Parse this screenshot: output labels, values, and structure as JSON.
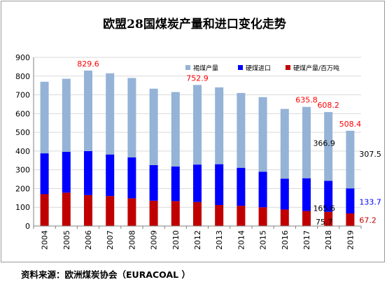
{
  "source_note": "资料来源：欧洲煤炭协会（EURACOAL ）",
  "chart_data": {
    "type": "bar",
    "stacked": true,
    "title": "欧盟28国煤炭产量和进口变化走势",
    "xlabel": "",
    "ylabel": "",
    "ylim": [
      0,
      900
    ],
    "yticks": [
      0,
      100,
      200,
      300,
      400,
      500,
      600,
      700,
      800,
      900
    ],
    "grid": true,
    "legend_position": "top",
    "categories": [
      "2004",
      "2005",
      "2006",
      "2007",
      "2008",
      "2009",
      "2010",
      "2012",
      "2013",
      "2014",
      "2015",
      "2016",
      "2017",
      "2018",
      "2019"
    ],
    "series": [
      {
        "name": "硬煤产量/百万吨",
        "color": "#c00000",
        "values": [
          170,
          178,
          165,
          160,
          148,
          135,
          133,
          128,
          112,
          108,
          100,
          88,
          80,
          75.7,
          67.2
        ]
      },
      {
        "name": "硬煤进口",
        "color": "#0000ff",
        "values": [
          218,
          218,
          235,
          222,
          218,
          190,
          185,
          200,
          218,
          203,
          190,
          165,
          175,
          165.6,
          133.7
        ]
      },
      {
        "name": "褐煤产量",
        "color": "#95b3d7",
        "values": [
          382,
          390,
          429.6,
          433,
          424,
          408,
          397,
          424.9,
          410,
          399,
          398,
          372,
          380.8,
          366.9,
          307.5
        ]
      }
    ],
    "total_labels": [
      {
        "category": "2006",
        "text": "829.6"
      },
      {
        "category": "2012",
        "text": "752.9"
      },
      {
        "category": "2017",
        "text": "635.8"
      },
      {
        "category": "2018",
        "text": "608.2"
      },
      {
        "category": "2019",
        "text": "508.4"
      }
    ],
    "segment_labels": [
      {
        "category": "2018",
        "series": 2,
        "text": "366.9"
      },
      {
        "category": "2018",
        "series": 1,
        "text": "165.6"
      },
      {
        "category": "2018",
        "series": 0,
        "text": "75.7"
      },
      {
        "category": "2019",
        "series": 2,
        "text": "307.5"
      },
      {
        "category": "2019",
        "series": 1,
        "text": "133.7"
      },
      {
        "category": "2019",
        "series": 0,
        "text": "67.2"
      }
    ],
    "legend_order": [
      2,
      1,
      0
    ],
    "colors": {
      "total_label": "#ff0000",
      "label_default": "#000000",
      "axis": "#808080",
      "grid": "#d9d9d9"
    }
  }
}
